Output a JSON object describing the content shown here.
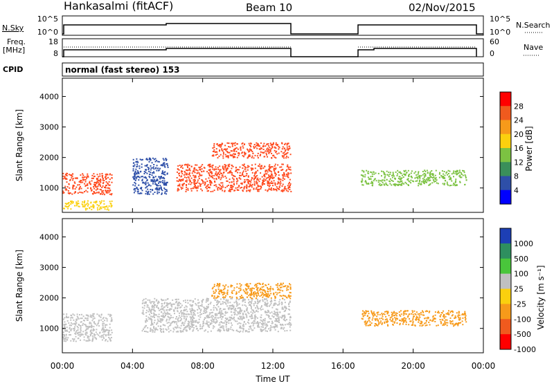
{
  "header": {
    "station": "Hankasalmi (fitACF)",
    "beam": "Beam 10",
    "date": "02/Nov/2015"
  },
  "top_panels": {
    "nsky_label": "N.Sky",
    "nsky_ticks": [
      "10^5",
      "10^0"
    ],
    "nsearch_label": "N.Search",
    "nsearch_ticks": [
      "10^5",
      "10^0"
    ],
    "freq_label_1": "Freq.",
    "freq_label_2": "[MHz]",
    "freq_ticks": [
      "18",
      "8"
    ],
    "nave_label": "Nave",
    "nave_ticks": [
      "60",
      "0"
    ],
    "cpid_label": "CPID",
    "cpid_value": "normal (fast stereo) 153",
    "data_gap_hours": [
      13.0,
      17.0
    ]
  },
  "chart_data": [
    {
      "type": "heatmap",
      "name": "power",
      "ylabel": "Slant Range [km]",
      "yticks": [
        1000,
        2000,
        3000,
        4000
      ],
      "ylim": [
        200,
        4600
      ],
      "colorbar": {
        "label": "Power [dB]",
        "ticks": [
          "28",
          "24",
          "20",
          "16",
          "12",
          "8",
          "4"
        ],
        "colors": [
          "#ff0000",
          "#f05a1e",
          "#f79a1a",
          "#fbd00e",
          "#7cc242",
          "#3a8f5a",
          "#2e4fa8",
          "#0000ff"
        ]
      },
      "scatter_regions": [
        {
          "t": [
            0.0,
            2.8
          ],
          "range": [
            800,
            1500
          ],
          "color": "#ff4a1e"
        },
        {
          "t": [
            0.0,
            2.8
          ],
          "range": [
            300,
            600
          ],
          "color": "#fbd00e"
        },
        {
          "t": [
            4.0,
            6.0
          ],
          "range": [
            800,
            2000
          ],
          "color": "#2e4fa8"
        },
        {
          "t": [
            6.5,
            13.0
          ],
          "range": [
            900,
            1800
          ],
          "color": "#ff4a1e"
        },
        {
          "t": [
            8.5,
            13.0
          ],
          "range": [
            2000,
            2500
          ],
          "color": "#ff4a1e"
        },
        {
          "t": [
            17.0,
            23.0
          ],
          "range": [
            1100,
            1600
          ],
          "color": "#7cc242"
        }
      ]
    },
    {
      "type": "heatmap",
      "name": "velocity",
      "ylabel": "Slant Range [km]",
      "xlabel": "Time UT",
      "yticks": [
        1000,
        2000,
        3000,
        4000
      ],
      "ylim": [
        200,
        4600
      ],
      "xticks": [
        "00:00",
        "04:00",
        "08:00",
        "12:00",
        "16:00",
        "20:00",
        "00:00"
      ],
      "xlim_hours": [
        0,
        24
      ],
      "colorbar": {
        "label": "Velocity [m s⁻¹]",
        "ticks": [
          "1000",
          "500",
          "100",
          "25",
          "-25",
          "-100",
          "-500",
          "-1000"
        ],
        "colors": [
          "#1d3fb5",
          "#2e8f5f",
          "#49c63b",
          "#c0c0c0",
          "#fbd00e",
          "#f79a1a",
          "#f05a1e",
          "#ff0000"
        ]
      },
      "scatter_regions": [
        {
          "t": [
            0.0,
            2.8
          ],
          "range": [
            600,
            1500
          ],
          "color": "#c0c0c0"
        },
        {
          "t": [
            4.5,
            13.0
          ],
          "range": [
            900,
            2000
          ],
          "color": "#c0c0c0"
        },
        {
          "t": [
            8.5,
            13.0
          ],
          "range": [
            2000,
            2500
          ],
          "color": "#f79a1a"
        },
        {
          "t": [
            17.0,
            23.0
          ],
          "range": [
            1100,
            1600
          ],
          "color": "#f79a1a"
        }
      ]
    }
  ]
}
